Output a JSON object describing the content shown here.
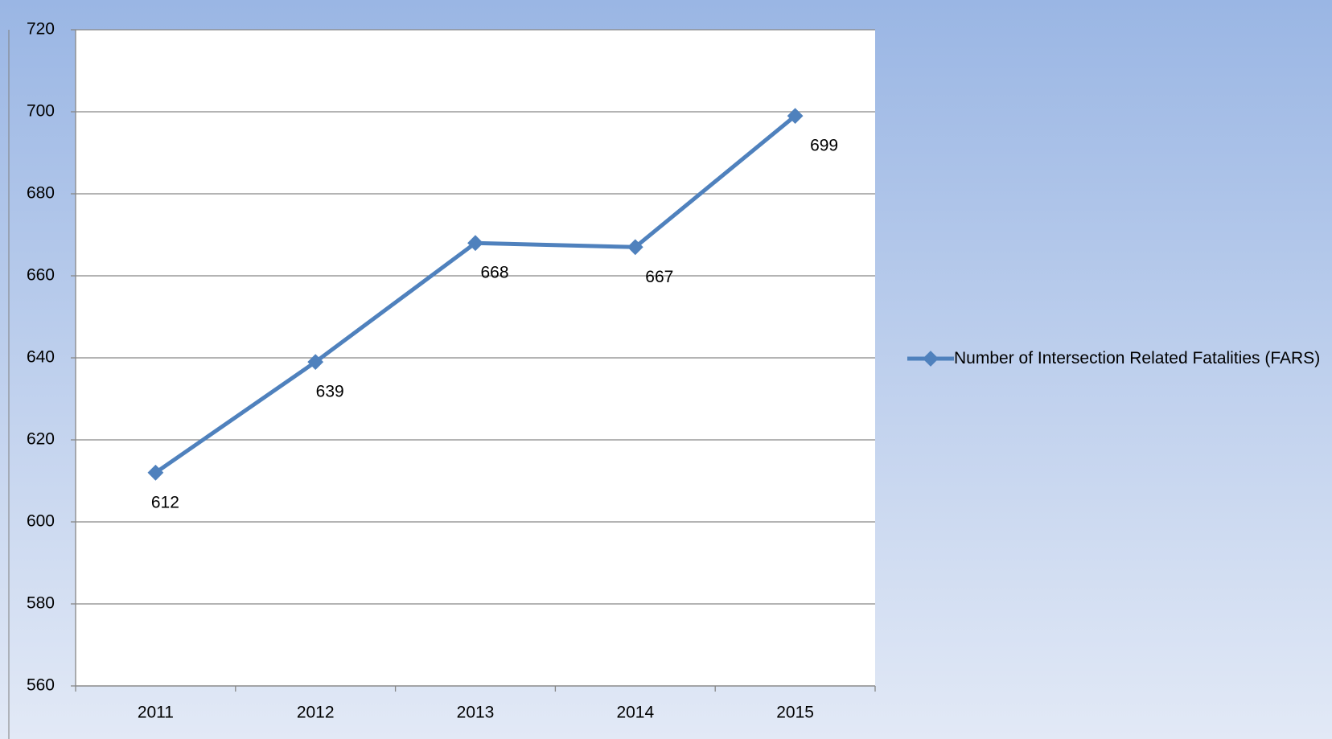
{
  "chart_data": {
    "type": "line",
    "categories": [
      "2011",
      "2012",
      "2013",
      "2014",
      "2015"
    ],
    "series": [
      {
        "name": "Number of Intersection Related Fatalities (FARS)",
        "color": "#4f81bd",
        "values": [
          612,
          639,
          668,
          667,
          699
        ]
      }
    ],
    "ylim": [
      560,
      720
    ],
    "yticks": [
      560,
      580,
      600,
      620,
      640,
      660,
      680,
      700,
      720
    ],
    "grid": true,
    "legend": "right"
  }
}
